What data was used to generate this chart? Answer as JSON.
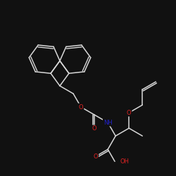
{
  "background_color": "#111111",
  "bond_color": "#d8d8d8",
  "atom_colors": {
    "O": "#dd2222",
    "N": "#2222cc",
    "C": "#d8d8d8"
  },
  "figsize": [
    2.5,
    2.5
  ],
  "dpi": 100,
  "bond_lw": 1.1,
  "font_size": 6.0
}
